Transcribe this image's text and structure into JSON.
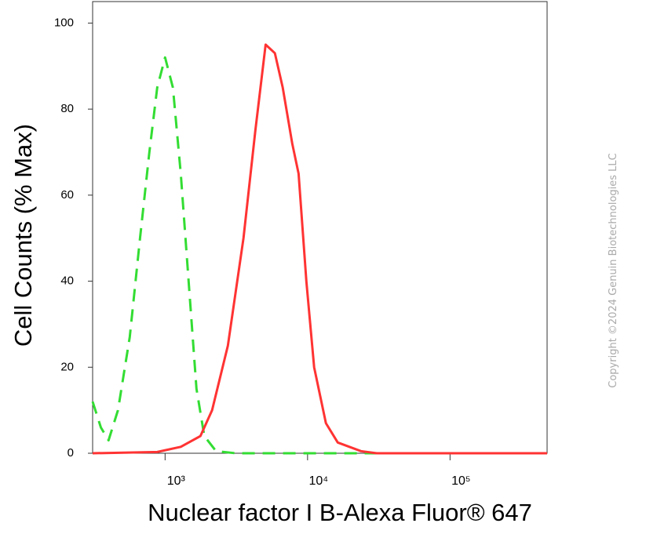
{
  "chart_data": {
    "type": "line",
    "x_label": "Nuclear factor I B-Alexa Fluor® 647",
    "y_label": "Cell Counts (% Max)",
    "watermark": "Copyright ©2024 Genuin Biotechnologies LLC",
    "xscale": "log",
    "xlim": [
      310,
      480000
    ],
    "xticks": [
      {
        "value": 1000,
        "label": "10³"
      },
      {
        "value": 10000,
        "label": "10⁴"
      },
      {
        "value": 100000,
        "label": "10⁵"
      }
    ],
    "ylim": [
      0,
      105
    ],
    "yticks": [
      0,
      20,
      40,
      60,
      80,
      100
    ],
    "series": [
      {
        "color": "#33dd33",
        "dashed": true,
        "x": [
          310,
          354,
          401,
          467,
          565,
          667,
          776,
          881,
          1000,
          1135,
          1288,
          1463,
          1661,
          1885,
          2278,
          3131,
          11120,
          39500,
          480000
        ],
        "values": [
          12,
          6,
          3,
          10,
          27,
          50,
          70,
          85,
          92,
          85,
          65,
          40,
          15,
          4,
          0.5,
          0,
          0,
          0,
          0
        ]
      },
      {
        "color": "#ff3333",
        "dashed": false,
        "x": [
          310,
          881,
          1288,
          1769,
          2138,
          2757,
          3552,
          4298,
          5074,
          5898,
          6694,
          7808,
          8653,
          9808,
          11120,
          13450,
          16300,
          23700,
          30600,
          480000
        ],
        "values": [
          0,
          0.3,
          1.5,
          4,
          10,
          25,
          50,
          75,
          95,
          93,
          85,
          72,
          65,
          40,
          20,
          7,
          2.5,
          0.5,
          0,
          0
        ]
      }
    ]
  }
}
